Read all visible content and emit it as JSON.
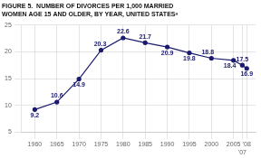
{
  "chart_data": {
    "type": "line",
    "title": "FIGURE 5.  NUMBER OF DIVORCES PER 1,000 MARRIED\nWOMEN AGE 15 AND OLDER, BY YEAR, UNITED STATESᵃ",
    "x": [
      1960,
      1965,
      1970,
      1975,
      1980,
      1985,
      1990,
      1995,
      2000,
      2005,
      2007,
      2008
    ],
    "values": [
      9.2,
      10.6,
      14.9,
      20.3,
      22.6,
      21.7,
      20.9,
      19.8,
      18.8,
      18.4,
      17.5,
      16.9
    ],
    "color": "#1a1a6e",
    "marker": "circle",
    "xlim": [
      1957,
      2010
    ],
    "xticks": [
      1960,
      1965,
      1970,
      1975,
      1980,
      1985,
      1990,
      1995,
      2000,
      2005,
      {
        "value": 2007,
        "label": "'07"
      },
      {
        "value": 2008,
        "label": "'08"
      }
    ],
    "ylim": [
      5,
      25
    ],
    "yticks": [
      5,
      10,
      15,
      20,
      25
    ],
    "grid": true,
    "data_labels": true
  }
}
